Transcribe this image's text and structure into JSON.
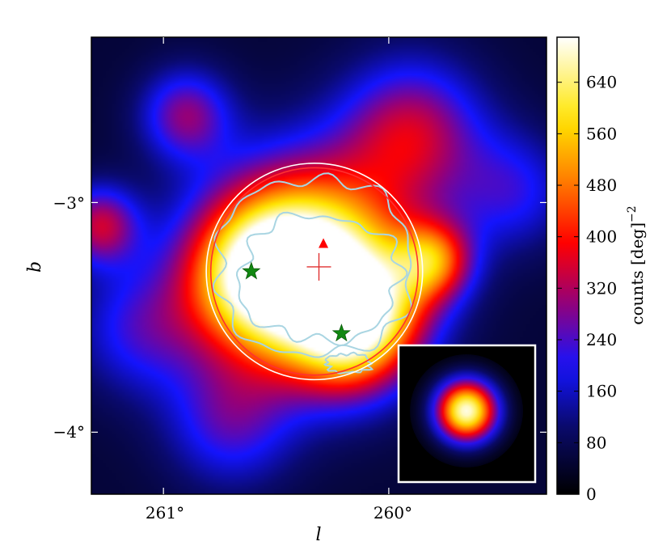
{
  "chart_data": {
    "type": "heatmap",
    "xlabel": "l",
    "ylabel": "b",
    "x_range": [
      261.32,
      259.3
    ],
    "y_range": [
      -4.27,
      -2.28
    ],
    "x_ticks": [
      {
        "value": 261.0,
        "label": "261°"
      },
      {
        "value": 260.0,
        "label": "260°"
      }
    ],
    "y_ticks": [
      {
        "value": -3.0,
        "label": "−3°"
      },
      {
        "value": -4.0,
        "label": "−4°"
      }
    ],
    "colorbar": {
      "label": "counts [deg]",
      "label_exponent": "−2",
      "range": [
        0,
        710
      ],
      "ticks": [
        "0",
        "80",
        "160",
        "240",
        "320",
        "400",
        "480",
        "560",
        "640"
      ],
      "colormap": "gist_heat-like (black → blue → red → yellow → white)"
    },
    "blobs": [
      {
        "l": 260.35,
        "b": -3.28,
        "peak": 700,
        "width": 0.3
      },
      {
        "l": 260.6,
        "b": -3.32,
        "peak": 360,
        "width": 0.22
      },
      {
        "l": 260.18,
        "b": -3.6,
        "peak": 300,
        "width": 0.18
      },
      {
        "l": 260.05,
        "b": -3.45,
        "peak": 220,
        "width": 0.18
      },
      {
        "l": 259.8,
        "b": -3.25,
        "peak": 340,
        "width": 0.12
      },
      {
        "l": 259.9,
        "b": -2.7,
        "peak": 280,
        "width": 0.22
      },
      {
        "l": 260.9,
        "b": -2.62,
        "peak": 230,
        "width": 0.14
      },
      {
        "l": 261.28,
        "b": -3.1,
        "peak": 280,
        "width": 0.12
      },
      {
        "l": 260.7,
        "b": -3.95,
        "peak": 180,
        "width": 0.2
      },
      {
        "l": 261.1,
        "b": -3.55,
        "peak": 160,
        "width": 0.2
      },
      {
        "l": 259.45,
        "b": -2.95,
        "peak": 150,
        "width": 0.18
      }
    ],
    "annotations": {
      "circles": [
        {
          "l": 260.33,
          "b": -3.3,
          "radius_deg": 0.48,
          "color": "#ffffff"
        },
        {
          "l": 260.33,
          "b": -3.3,
          "radius_deg": 0.46,
          "color": "#ff3030"
        }
      ],
      "cross": {
        "l": 260.31,
        "b": -3.28,
        "color": "#e03030"
      },
      "triangle": {
        "l": 260.29,
        "b": -3.18,
        "color": "#ff0000"
      },
      "stars": [
        {
          "l": 260.61,
          "b": -3.3,
          "color": "#118811"
        },
        {
          "l": 260.21,
          "b": -3.57,
          "color": "#118811"
        }
      ],
      "contour_color": "#a9d5e2"
    },
    "inset": {
      "description": "PSF",
      "width_deg": 0.13
    }
  }
}
